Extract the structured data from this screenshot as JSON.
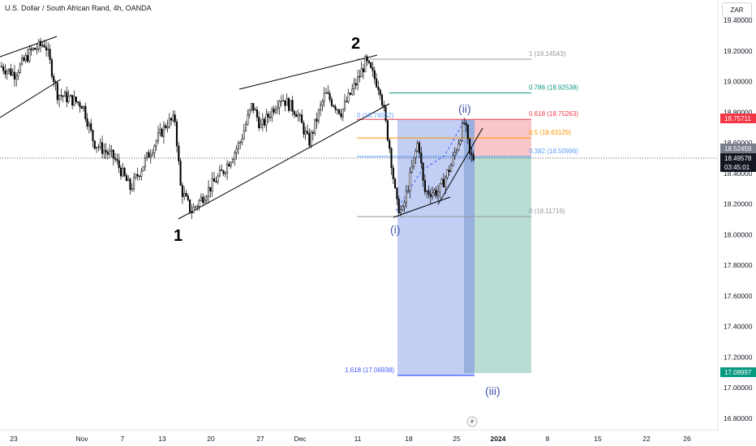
{
  "header": {
    "title": "U.S. Dollar / South African Rand, 4h, OANDA"
  },
  "currency_button": "ZAR",
  "price_axis": {
    "ticks": [
      "19.40000",
      "19.20000",
      "19.00000",
      "18.80000",
      "18.60000",
      "18.40000",
      "18.20000",
      "18.00000",
      "17.80000",
      "17.60000",
      "17.40000",
      "17.20000",
      "17.00000",
      "16.80000"
    ],
    "current_price": "18.49578",
    "countdown": "03:45:01",
    "red_tag": "18.75711",
    "last_label": "18.52459",
    "green_tag": "17.08997"
  },
  "time_axis": {
    "ticks": [
      "23",
      "Nov",
      "7",
      "13",
      "20",
      "27",
      "Dec",
      "11",
      "18",
      "25",
      "2024",
      "8",
      "15",
      "22",
      "26"
    ],
    "bold_tick": "2024"
  },
  "fibonacci": {
    "levels": [
      {
        "ratio": "1",
        "price": "19.14543",
        "label": "1 (19.14543)",
        "color": "#9598a1"
      },
      {
        "ratio": "0.786",
        "price": "18.92538",
        "label": "0.786 (18.92538)",
        "color": "#089981"
      },
      {
        "ratio": "0.618",
        "price": "18.75263",
        "label": "0.618 (18.75263)",
        "color": "#f23645"
      },
      {
        "ratio": "0.5",
        "price": "18.63129",
        "label": "0.5 (18.63129)",
        "color": "#ff9800"
      },
      {
        "ratio": "0.382",
        "price": "18.50996",
        "label": "0.382 (18.50996)",
        "color": "#5b9cf6"
      },
      {
        "ratio": "0",
        "price": "18.11716",
        "label": "0 (18.11716)",
        "color": "#9598a1"
      }
    ],
    "ext_label": "1.618 (17.06938)",
    "zero_label": "0 (18.74052)"
  },
  "wave_labels": {
    "w1": "1",
    "w2": "2",
    "wi": "(i)",
    "wii": "(ii)",
    "wiii": "(iii)"
  },
  "icons": {
    "lightning": "lightning-icon"
  },
  "colors": {
    "bull": "#ffffff",
    "bear": "#000000",
    "red": "#f23645",
    "green": "#089981",
    "blue_box": "#8fa6ea",
    "green_box": "#a8d5cb",
    "red_box": "#f6b8bc"
  },
  "chart_data": {
    "type": "candlestick",
    "title": "U.S. Dollar / South African Rand, 4h, OANDA",
    "xlabel": "",
    "ylabel": "",
    "ylim": [
      16.7,
      19.5
    ],
    "x_ticks": [
      "23",
      "Nov",
      "7",
      "13",
      "20",
      "27",
      "Dec",
      "11",
      "18",
      "25",
      "2024",
      "8",
      "15",
      "22",
      "26"
    ],
    "y_ticks": [
      19.4,
      19.2,
      19.0,
      18.8,
      18.6,
      18.4,
      18.2,
      18.0,
      17.8,
      17.6,
      17.4,
      17.2,
      17.0,
      16.8
    ],
    "path_points": [
      {
        "x": "Oct 20",
        "close": 19.1
      },
      {
        "x": "Oct 23",
        "close": 19.05
      },
      {
        "x": "Oct 25",
        "close": 19.2
      },
      {
        "x": "Oct 27",
        "close": 19.25
      },
      {
        "x": "Oct 30",
        "close": 18.92
      },
      {
        "x": "Nov 1",
        "close": 18.85
      },
      {
        "x": "Nov 3",
        "close": 18.6
      },
      {
        "x": "Nov 6",
        "close": 18.5
      },
      {
        "x": "Nov 8",
        "close": 18.3
      },
      {
        "x": "Nov 10",
        "close": 18.55
      },
      {
        "x": "Nov 13",
        "close": 18.73
      },
      {
        "x": "Nov 14",
        "close": 18.75
      },
      {
        "x": "Nov 15",
        "close": 18.3
      },
      {
        "x": "Nov 17",
        "close": 18.15
      },
      {
        "x": "Nov 20",
        "close": 18.32
      },
      {
        "x": "Nov 22",
        "close": 18.42
      },
      {
        "x": "Nov 24",
        "close": 18.6
      },
      {
        "x": "Nov 27",
        "close": 18.85
      },
      {
        "x": "Nov 28",
        "close": 18.7
      },
      {
        "x": "Nov 30",
        "close": 18.9
      },
      {
        "x": "Dec 1",
        "close": 18.8
      },
      {
        "x": "Dec 4",
        "close": 18.6
      },
      {
        "x": "Dec 6",
        "close": 18.92
      },
      {
        "x": "Dec 8",
        "close": 18.8
      },
      {
        "x": "Dec 11",
        "close": 19.02
      },
      {
        "x": "Dec 12",
        "close": 19.13
      },
      {
        "x": "Dec 13",
        "close": 18.95
      },
      {
        "x": "Dec 14",
        "close": 18.55
      },
      {
        "x": "Dec 15",
        "close": 18.2
      },
      {
        "x": "Dec 16",
        "close": 18.14
      },
      {
        "x": "Dec 18",
        "close": 18.62
      },
      {
        "x": "Dec 19",
        "close": 18.28
      },
      {
        "x": "Dec 21",
        "close": 18.28
      },
      {
        "x": "Dec 22",
        "close": 18.45
      },
      {
        "x": "Dec 26",
        "close": 18.74
      },
      {
        "x": "Dec 27",
        "close": 18.52
      },
      {
        "x": "Dec 28",
        "close": 18.5
      }
    ],
    "horizontal_levels": [
      19.14543,
      18.92538,
      18.75263,
      18.63129,
      18.50996,
      18.11716,
      17.06938
    ],
    "current_price": 18.49578,
    "grid": false,
    "legend": "none"
  }
}
